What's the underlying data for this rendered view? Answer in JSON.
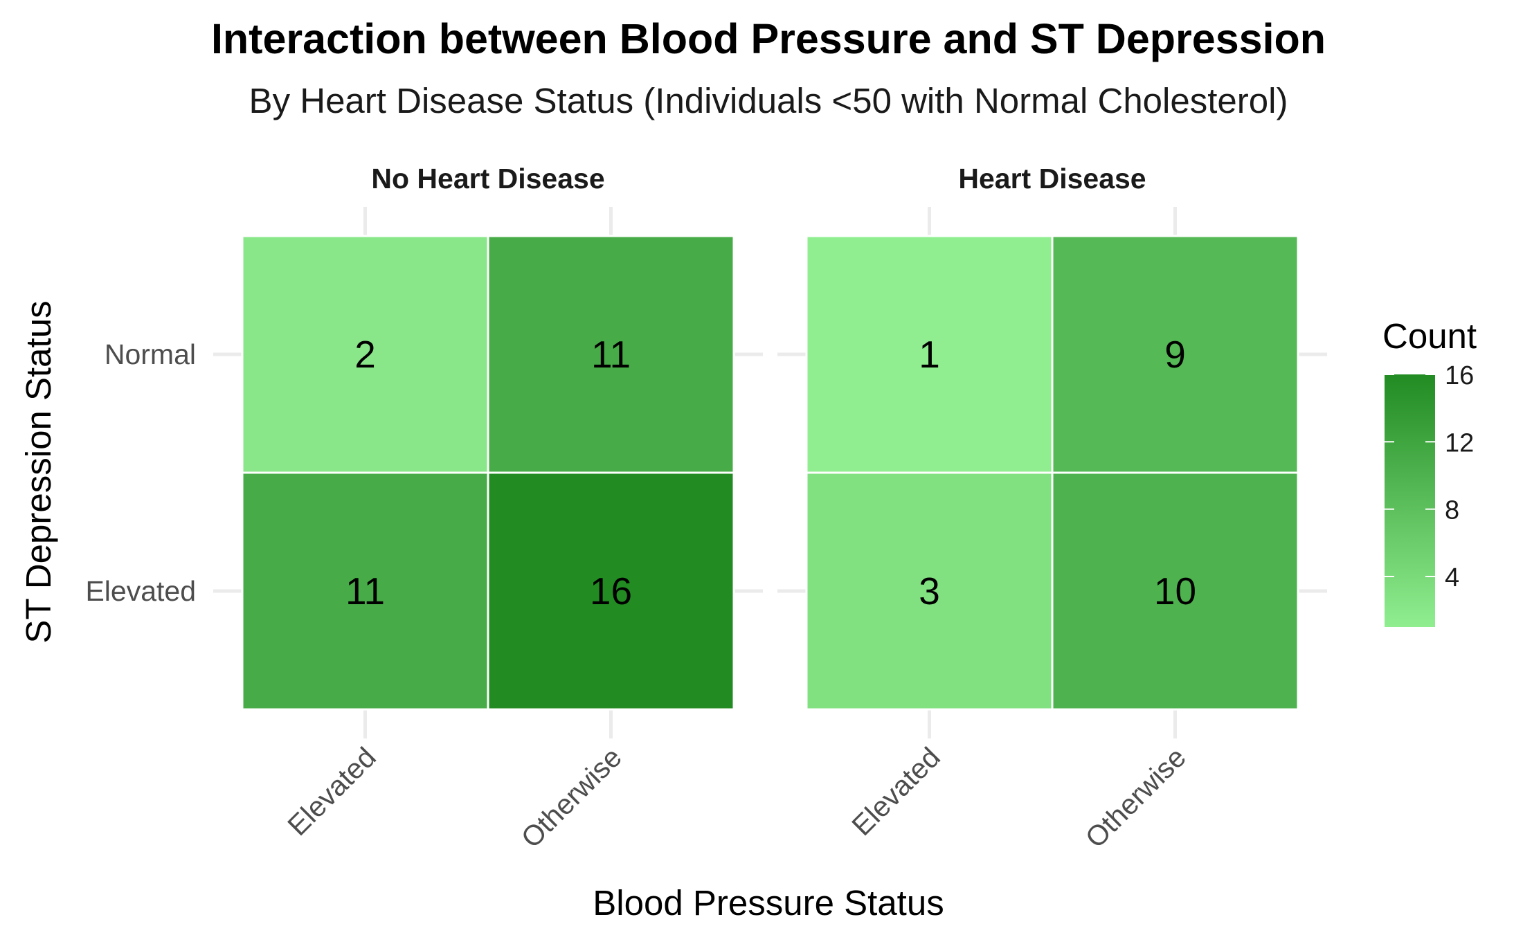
{
  "chart_data": {
    "type": "heatmap",
    "title": "Interaction between Blood Pressure and ST Depression",
    "subtitle": "By Heart Disease Status (Individuals <50 with Normal Cholesterol)",
    "xlabel": "Blood Pressure Status",
    "ylabel": "ST Depression Status",
    "x_categories": [
      "Elevated",
      "Otherwise"
    ],
    "y_categories": [
      "Normal",
      "Elevated"
    ],
    "facets": [
      {
        "name": "No Heart Disease",
        "cells": [
          {
            "x": "Elevated",
            "y": "Normal",
            "value": 2
          },
          {
            "x": "Otherwise",
            "y": "Normal",
            "value": 11
          },
          {
            "x": "Elevated",
            "y": "Elevated",
            "value": 11
          },
          {
            "x": "Otherwise",
            "y": "Elevated",
            "value": 16
          }
        ]
      },
      {
        "name": "Heart Disease",
        "cells": [
          {
            "x": "Elevated",
            "y": "Normal",
            "value": 1
          },
          {
            "x": "Otherwise",
            "y": "Normal",
            "value": 9
          },
          {
            "x": "Elevated",
            "y": "Elevated",
            "value": 3
          },
          {
            "x": "Otherwise",
            "y": "Elevated",
            "value": 10
          }
        ]
      }
    ],
    "legend": {
      "title": "Count",
      "ticks": [
        4,
        8,
        12,
        16
      ],
      "range": [
        1,
        16
      ],
      "position": "right"
    },
    "colors": {
      "low": "#90EE90",
      "high": "#228B22",
      "grid": "#ebebeb",
      "cell_border": "#ffffff"
    },
    "grid": true
  }
}
